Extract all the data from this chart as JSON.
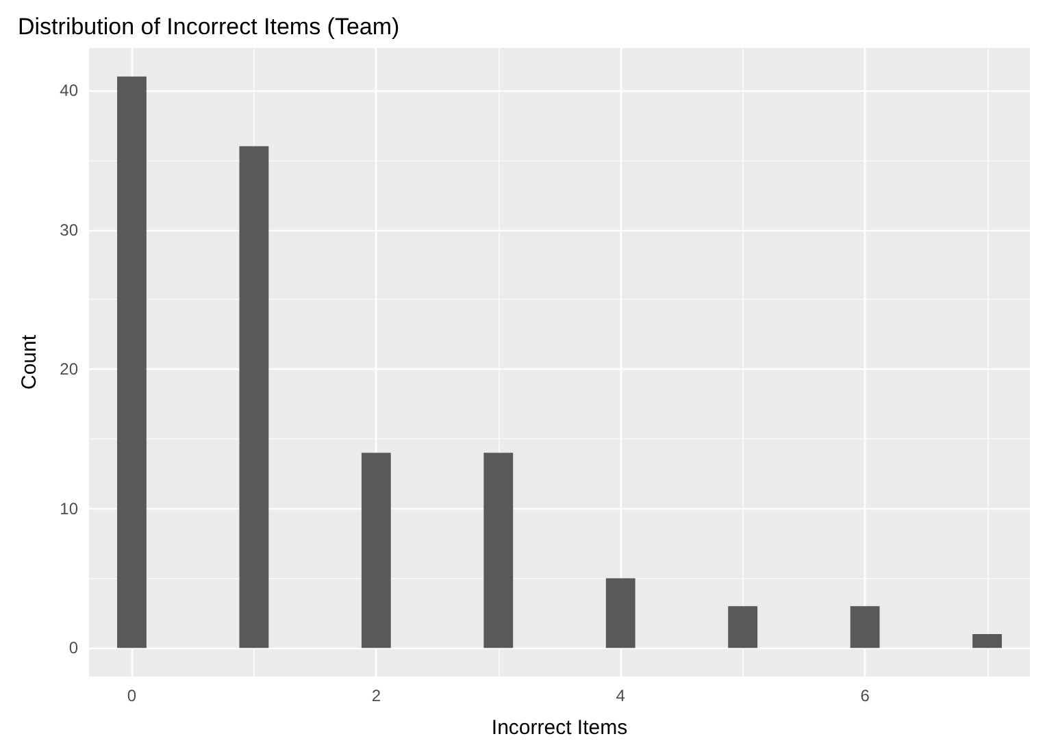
{
  "chart_data": {
    "type": "bar",
    "title": "Distribution of Incorrect Items (Team)",
    "xlabel": "Incorrect Items",
    "ylabel": "Count",
    "x": [
      0,
      1,
      2,
      3,
      4,
      5,
      6,
      7
    ],
    "values": [
      41,
      36,
      14,
      14,
      5,
      3,
      3,
      1
    ],
    "color": "#595959",
    "xlim": [
      -0.35,
      7.35
    ],
    "xticks": [
      0,
      {
        "value": 1,
        "label": null
      },
      2,
      {
        "value": 3,
        "label": null
      },
      4,
      {
        "value": 5,
        "label": null
      },
      6,
      {
        "value": 7,
        "label": null
      }
    ],
    "ylim": [
      -2.05,
      43.05
    ],
    "yticks": [
      0,
      {
        "value": 5,
        "label": null
      },
      10,
      {
        "value": 15,
        "label": null
      },
      20,
      {
        "value": 25,
        "label": null
      },
      30,
      {
        "value": 35,
        "label": null
      },
      40
    ],
    "grid": true
  }
}
